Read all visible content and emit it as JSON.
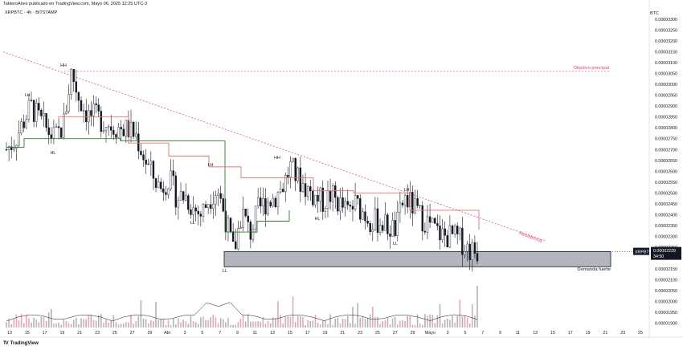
{
  "header": {
    "publisher": "TableroAires publicado en TradingView.com, Mayo 06, 2025 12:25 UTC-3",
    "symbol_line": "XRPBTC · 4h · BITSTAMP",
    "currency": "BTC"
  },
  "brand": {
    "logo": "TV",
    "name": "TradingView"
  },
  "price_badge": {
    "symbol": "XRPBTC",
    "price": "0.00002229",
    "countdown": "34:50"
  },
  "annotations": {
    "objetivo": "Objetivo principal",
    "resistencia": "Resistencia",
    "demanda": "Demanda fuerte",
    "pivots": [
      "LH",
      "HH",
      "HL",
      "LH",
      "LL",
      "LL",
      "HH",
      "HL",
      "LH",
      "LL"
    ]
  },
  "chart_data": {
    "type": "candlestick",
    "y_unit": "BTC",
    "ylim": [
      1.88e-05,
      3.3e-05
    ],
    "y_ticks": [
      "0.00003300",
      "0.00003250",
      "0.00003200",
      "0.00003150",
      "0.00003100",
      "0.00003050",
      "0.00003000",
      "0.00002950",
      "0.00002900",
      "0.00002850",
      "0.00002800",
      "0.00002750",
      "0.00002700",
      "0.00002650",
      "0.00002600",
      "0.00002550",
      "0.00002500",
      "0.00002450",
      "0.00002400",
      "0.00002350",
      "0.00002300",
      "0.00002250",
      "0.00002200",
      "0.00002150",
      "0.00002100",
      "0.00002050",
      "0.00002000",
      "0.00001950",
      "0.00001900"
    ],
    "x_ticks": [
      "13",
      "15",
      "17",
      "19",
      "21",
      "23",
      "25",
      "27",
      "29",
      "Abr",
      "3",
      "5",
      "7",
      "9",
      "11",
      "13",
      "15",
      "17",
      "19",
      "21",
      "23",
      "25",
      "27",
      "29",
      "Mayo",
      "3",
      "5",
      "7",
      "9",
      "11",
      "13",
      "15",
      "17",
      "19",
      "21",
      "23",
      "25"
    ],
    "close_path": [
      [
        2.7e-05,
        2.74e-05,
        2.82e-05,
        2.9e-05,
        2.84e-05,
        2.79e-05,
        2.75e-05,
        2.81e-05,
        3.06e-05,
        2.93e-05,
        2.86e-05,
        2.85e-05,
        2.83e-05,
        2.81e-05,
        2.8e-05,
        2.79e-05,
        2.76e-05,
        2.66e-05,
        2.58e-05,
        2.52e-05,
        2.57e-05,
        2.48e-05,
        2.49e-05,
        2.43e-05,
        2.4e-05,
        2.48e-05,
        2.52e-05,
        2.38e-05,
        2.22e-05,
        2.42e-05,
        2.31e-05,
        2.42e-05,
        2.46e-05,
        2.48e-05,
        2.53e-05,
        2.62e-05,
        2.56e-05,
        2.52e-05,
        2.48e-05,
        2.46e-05,
        2.49e-05,
        2.45e-05,
        2.41e-05,
        2.45e-05,
        2.41e-05,
        2.37e-05,
        2.37e-05,
        2.34e-05,
        2.33e-05,
        2.48e-05,
        2.44e-05,
        2.39e-05,
        2.36e-05,
        2.32e-05,
        2.3e-05,
        2.3e-05,
        2.28e-05,
        2.24e-05,
        2.23e-05
      ]
    ],
    "supertrend": {
      "green": [
        2.71e-05,
        2.75e-05,
        2.75e-05,
        2.74e-05,
        2.32e-05,
        2.37e-05,
        2.42e-05
      ],
      "red": [
        2.85e-05,
        2.73e-05,
        2.67e-05,
        2.62e-05,
        2.57e-05,
        2.51e-05,
        2.5e-05,
        2.42e-05,
        2.33e-05
      ]
    },
    "levels": {
      "objetivo": 3.06e-05,
      "demand_zone": [
        2.16e-05,
        2.23e-05
      ],
      "last_price": 2.229e-05
    },
    "resistance_line": {
      "from": 3.15e-05,
      "to": 2.27e-05
    },
    "volume_spike_at_end": true
  }
}
